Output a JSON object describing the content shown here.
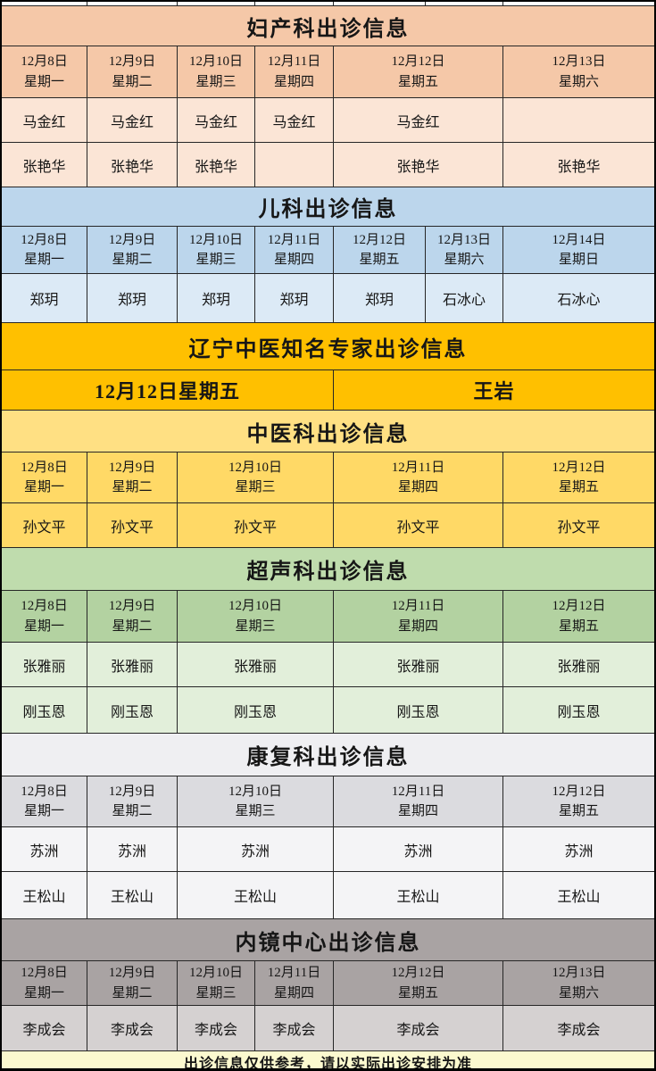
{
  "page": {
    "border_color": "#000000",
    "line_color": "#262626"
  },
  "sections": [
    {
      "key": "obgyn",
      "title": "妇产科出诊信息",
      "colors": {
        "header": "#F5C8A8",
        "dates": "#F5C8A8",
        "body": "#FBE5D6"
      },
      "spans": [
        1,
        1,
        1,
        1,
        2,
        1
      ],
      "dates": [
        "12月8日\n星期一",
        "12月9日\n星期二",
        "12月10日\n星期三",
        "12月11日\n星期四",
        "12月12日\n星期五",
        "12月13日\n星期六"
      ],
      "rows": [
        [
          "马金红",
          "马金红",
          "马金红",
          "马金红",
          "马金红",
          ""
        ],
        [
          "张艳华",
          "张艳华",
          "张艳华",
          "",
          "张艳华",
          "张艳华"
        ]
      ]
    },
    {
      "key": "pediatrics",
      "title": "儿科出诊信息",
      "colors": {
        "header": "#BCD6EC",
        "dates": "#BCD6EC",
        "body": "#DCEAF6"
      },
      "spans": [
        1,
        1,
        1,
        1,
        1,
        1,
        1
      ],
      "dates": [
        "12月8日\n星期一",
        "12月9日\n星期二",
        "12月10日\n星期三",
        "12月11日\n星期四",
        "12月12日\n星期五",
        "12月13日\n星期六",
        "12月14日\n星期日"
      ],
      "rows": [
        [
          "郑玥",
          "郑玥",
          "郑玥",
          "郑玥",
          "郑玥",
          "石冰心",
          "石冰心"
        ]
      ]
    },
    {
      "key": "tcm-expert",
      "title": "辽宁中医知名专家出诊信息",
      "colors": {
        "header": "#FFC000",
        "dates": "#FFC000",
        "body": "#FFC000"
      },
      "spans": [
        4,
        3
      ],
      "big": true,
      "rows": [
        [
          "12月12日星期五",
          "王岩"
        ]
      ]
    },
    {
      "key": "tcm",
      "title": "中医科出诊信息",
      "colors": {
        "header": "#FFE083",
        "dates": "#FFD966",
        "body": "#FFD966"
      },
      "spans": [
        1,
        1,
        2,
        2,
        1
      ],
      "dates": [
        "12月8日\n星期一",
        "12月9日\n星期二",
        "12月10日\n星期三",
        "12月11日\n星期四",
        "12月12日\n星期五"
      ],
      "rows": [
        [
          "孙文平",
          "孙文平",
          "孙文平",
          "孙文平",
          "孙文平"
        ]
      ]
    },
    {
      "key": "ultrasound",
      "title": "超声科出诊信息",
      "colors": {
        "header": "#BFDCAD",
        "dates": "#B3D2A1",
        "body": "#E2EFDA"
      },
      "spans": [
        1,
        1,
        2,
        2,
        1
      ],
      "dates": [
        "12月8日\n星期一",
        "12月9日\n星期二",
        "12月10日\n星期三",
        "12月11日\n星期四",
        "12月12日\n星期五"
      ],
      "rows": [
        [
          "张雅丽",
          "张雅丽",
          "张雅丽",
          "张雅丽",
          "张雅丽"
        ],
        [
          "刚玉恩",
          "刚玉恩",
          "刚玉恩",
          "刚玉恩",
          "刚玉恩"
        ]
      ]
    },
    {
      "key": "rehab",
      "title": "康复科出诊信息",
      "colors": {
        "header": "#EFEFF2",
        "dates": "#DBDBDF",
        "body": "#F4F4F6"
      },
      "spans": [
        1,
        1,
        2,
        2,
        1
      ],
      "dates": [
        "12月8日\n星期一",
        "12月9日\n星期二",
        "12月10日\n星期三",
        "12月11日\n星期四",
        "12月12日\n星期五"
      ],
      "rows": [
        [
          "苏洲",
          "苏洲",
          "苏洲",
          "苏洲",
          "苏洲"
        ],
        [
          "王松山",
          "王松山",
          "王松山",
          "王松山",
          "王松山"
        ]
      ]
    },
    {
      "key": "endoscopy",
      "title": "内镜中心出诊信息",
      "colors": {
        "header": "#A9A3A3",
        "dates": "#A9A3A3",
        "body": "#D5D1D1"
      },
      "spans": [
        1,
        1,
        1,
        1,
        2,
        1
      ],
      "dates": [
        "12月8日\n星期一",
        "12月9日\n星期二",
        "12月10日\n星期三",
        "12月11日\n星期四",
        "12月12日\n星期五",
        "12月13日\n星期六"
      ],
      "rows": [
        [
          "李成会",
          "李成会",
          "李成会",
          "李成会",
          "李成会",
          "李成会"
        ]
      ]
    }
  ],
  "footer": {
    "text": "出诊信息仅供参考，请以实际出诊安排为准",
    "bg": "#FBF9CF"
  }
}
